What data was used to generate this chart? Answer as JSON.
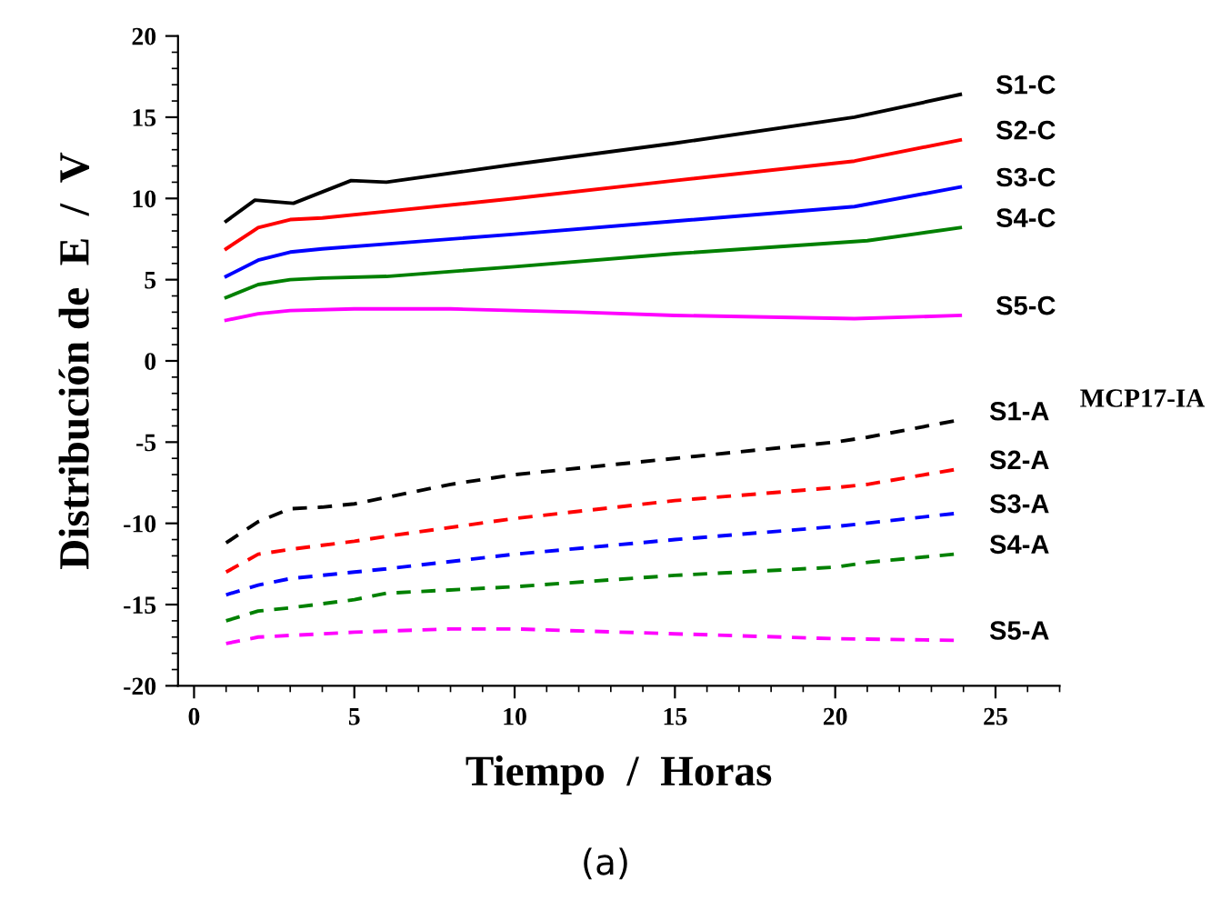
{
  "chart_data": {
    "type": "line",
    "xlabel": "Tiempo  /  Horas",
    "ylabel": "Distribución de  E  /  V",
    "xlim": [
      -0.5,
      27
    ],
    "xticks": [
      0,
      5,
      10,
      15,
      20,
      25
    ],
    "ylim": [
      -20,
      20
    ],
    "yticks": [
      -20,
      -15,
      -10,
      -5,
      0,
      5,
      10,
      15,
      20
    ],
    "grid": false,
    "legend": false,
    "annotations": [
      "MCP17-IA",
      "(a)"
    ],
    "series": [
      {
        "name": "S1-C",
        "color": "#000000",
        "line_style": "solid",
        "x": [
          1,
          1.9,
          3.1,
          4.9,
          6,
          10,
          15,
          20.6,
          23.9
        ],
        "values": [
          8.6,
          9.9,
          9.7,
          11.1,
          11.0,
          12.1,
          13.4,
          15.0,
          16.4
        ]
      },
      {
        "name": "S2-C",
        "color": "#ff0000",
        "line_style": "solid",
        "x": [
          1,
          2,
          3,
          4,
          6,
          10,
          15,
          20.6,
          23.9
        ],
        "values": [
          6.9,
          8.2,
          8.7,
          8.8,
          9.2,
          10.0,
          11.1,
          12.3,
          13.6
        ]
      },
      {
        "name": "S3-C",
        "color": "#0000ff",
        "line_style": "solid",
        "x": [
          1,
          2,
          3,
          4,
          6,
          10,
          15,
          20.6,
          23.9
        ],
        "values": [
          5.2,
          6.2,
          6.7,
          6.9,
          7.2,
          7.8,
          8.6,
          9.5,
          10.7
        ]
      },
      {
        "name": "S4-C",
        "color": "#008000",
        "line_style": "solid",
        "x": [
          1,
          2,
          3,
          4,
          6,
          10,
          15,
          21,
          23.9
        ],
        "values": [
          3.9,
          4.7,
          5.0,
          5.1,
          5.2,
          5.8,
          6.6,
          7.4,
          8.2
        ]
      },
      {
        "name": "S5-C",
        "color": "#ff00ff",
        "line_style": "solid",
        "x": [
          1,
          2,
          3,
          5,
          8,
          12,
          15,
          20.6,
          23.9
        ],
        "values": [
          2.5,
          2.9,
          3.1,
          3.2,
          3.2,
          3.0,
          2.8,
          2.6,
          2.8
        ]
      },
      {
        "name": "S1-A",
        "color": "#000000",
        "line_style": "dashed",
        "x": [
          1,
          2,
          3,
          4,
          5,
          6,
          8,
          10,
          15,
          20,
          21,
          23.7
        ],
        "values": [
          -11.2,
          -9.9,
          -9.1,
          -9.0,
          -8.8,
          -8.4,
          -7.6,
          -7.0,
          -6.0,
          -5.0,
          -4.7,
          -3.7
        ]
      },
      {
        "name": "S2-A",
        "color": "#ff0000",
        "line_style": "dashed",
        "x": [
          1,
          2,
          3,
          5,
          6,
          10,
          15,
          20,
          21,
          23.7
        ],
        "values": [
          -13.0,
          -11.9,
          -11.6,
          -11.1,
          -10.8,
          -9.7,
          -8.6,
          -7.8,
          -7.6,
          -6.7
        ]
      },
      {
        "name": "S3-A",
        "color": "#0000ff",
        "line_style": "dashed",
        "x": [
          1,
          2,
          3,
          5,
          6,
          10,
          15,
          20,
          23.7
        ],
        "values": [
          -14.4,
          -13.8,
          -13.4,
          -13.0,
          -12.8,
          -11.9,
          -11.0,
          -10.2,
          -9.4
        ]
      },
      {
        "name": "S4-A",
        "color": "#008000",
        "line_style": "dashed",
        "x": [
          1,
          2,
          3,
          5,
          6,
          10,
          15,
          20,
          21,
          23.7
        ],
        "values": [
          -16.0,
          -15.4,
          -15.2,
          -14.7,
          -14.3,
          -13.9,
          -13.2,
          -12.7,
          -12.4,
          -11.9
        ]
      },
      {
        "name": "S5-A",
        "color": "#ff00ff",
        "line_style": "dashed",
        "x": [
          1,
          2,
          3,
          5,
          8,
          10,
          15,
          20,
          23.7
        ],
        "values": [
          -17.4,
          -17.0,
          -16.9,
          -16.7,
          -16.5,
          -16.5,
          -16.8,
          -17.1,
          -17.2
        ]
      }
    ]
  }
}
